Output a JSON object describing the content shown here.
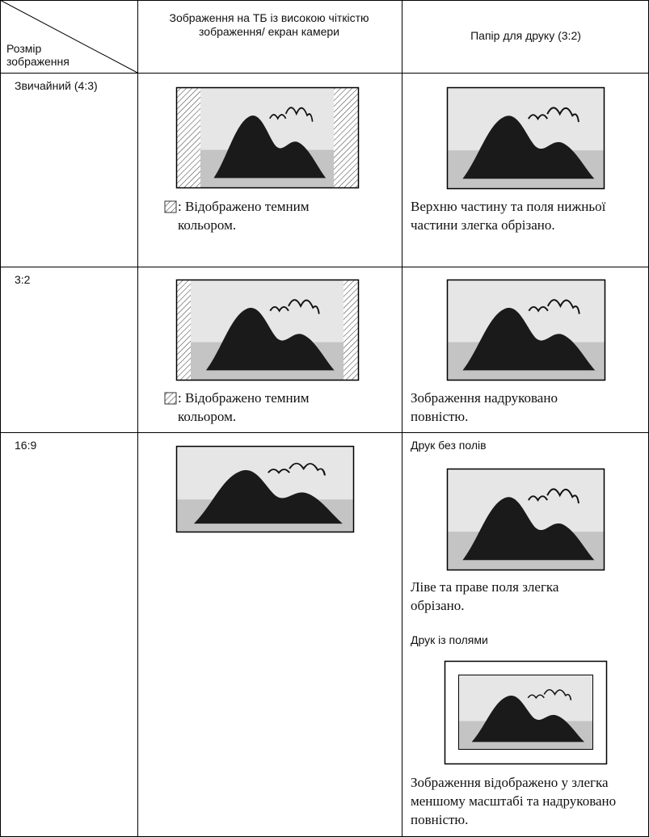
{
  "header": {
    "corner_top": "Розмір",
    "corner_bottom": "зображення",
    "col2": "Зображення на ТБ із високою чіткістю зображення/ екран камери",
    "col3": "Папір для друку (3:2)"
  },
  "rows": [
    {
      "size": "Звичайний (4:3)",
      "tv_caption": ": Відображено темним кольором.",
      "print_caption": "Верхню частину та поля нижньої частини злегка обрізано."
    },
    {
      "size": "3:2",
      "tv_caption": ": Відображено темним кольором.",
      "print_caption": "Зображення надруковано повністю."
    },
    {
      "size": "16:9",
      "borderless_title": "Друк без полів",
      "borderless_caption": "Ліве та праве поля злегка обрізано.",
      "bordered_title": "Друк із полями",
      "bordered_caption": "Зображення відображено у злегка меншому масштабі та надруковано повністю."
    }
  ]
}
